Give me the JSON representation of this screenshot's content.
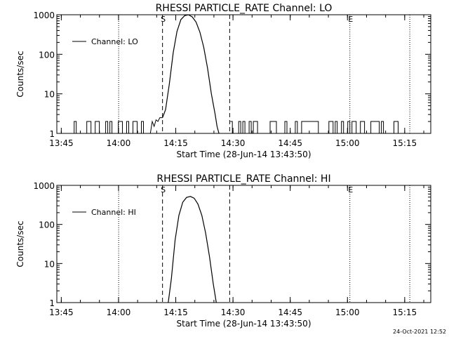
{
  "footer": {
    "timestamp": "24-Oct-2021 12:52"
  },
  "chart_data": [
    {
      "type": "line",
      "title": "RHESSI PARTICLE_RATE Channel: LO",
      "xlabel": "Start Time (28-Jun-14 13:43:50)",
      "ylabel": "Counts/sec",
      "x_unit": "minutes after 13:43:50",
      "xlim": [
        0,
        98
      ],
      "ylim": [
        1,
        1000
      ],
      "yscale": "log",
      "x_tick_labels": [
        "13:45",
        "14:00",
        "14:15",
        "14:30",
        "14:45",
        "15:00",
        "15:15"
      ],
      "x_tick_values": [
        1.17,
        16.17,
        31.17,
        46.17,
        61.17,
        76.17,
        91.17
      ],
      "y_tick_labels": [
        "1",
        "10",
        "100",
        "1000"
      ],
      "y_tick_values": [
        1,
        10,
        100,
        1000
      ],
      "legend": {
        "entries": [
          "Channel: LO"
        ],
        "placement": "top-left"
      },
      "markers": [
        {
          "label": "S",
          "x": 27.7,
          "style": "dashed"
        },
        {
          "label": "",
          "x": 45.3,
          "style": "dashed"
        },
        {
          "label": "",
          "x": 16.2,
          "style": "dotted"
        },
        {
          "label": "E",
          "x": 76.8,
          "style": "dotted"
        },
        {
          "label": "",
          "x": 92.5,
          "style": "dotted"
        }
      ],
      "series": [
        {
          "name": "Channel: LO",
          "x": [
            27.7,
            28.5,
            29.5,
            30.5,
            31.5,
            32.5,
            33.5,
            34.5,
            35.5,
            36.5,
            37.5,
            38.5,
            39.5,
            40.5,
            41.5,
            42.0,
            42.5
          ],
          "y": [
            2.5,
            4,
            18,
            110,
            380,
            750,
            950,
            1000,
            880,
            650,
            360,
            150,
            45,
            10,
            3,
            1.5,
            1
          ]
        }
      ],
      "noise": {
        "level": 2,
        "baseline": 1,
        "x_start": 4,
        "x_end": 93
      }
    },
    {
      "type": "line",
      "title": "RHESSI PARTICLE_RATE Channel: HI",
      "xlabel": "Start Time (28-Jun-14 13:43:50)",
      "ylabel": "Counts/sec",
      "x_unit": "minutes after 13:43:50",
      "xlim": [
        0,
        98
      ],
      "ylim": [
        1,
        1000
      ],
      "yscale": "log",
      "x_tick_labels": [
        "13:45",
        "14:00",
        "14:15",
        "14:30",
        "14:45",
        "15:00",
        "15:15"
      ],
      "x_tick_values": [
        1.17,
        16.17,
        31.17,
        46.17,
        61.17,
        76.17,
        91.17
      ],
      "y_tick_labels": [
        "1",
        "10",
        "100",
        "1000"
      ],
      "y_tick_values": [
        1,
        10,
        100,
        1000
      ],
      "legend": {
        "entries": [
          "Channel: HI"
        ],
        "placement": "top-left"
      },
      "markers": [
        {
          "label": "S",
          "x": 27.7,
          "style": "dashed"
        },
        {
          "label": "",
          "x": 45.3,
          "style": "dashed"
        },
        {
          "label": "",
          "x": 16.2,
          "style": "dotted"
        },
        {
          "label": "E",
          "x": 76.8,
          "style": "dotted"
        },
        {
          "label": "",
          "x": 92.5,
          "style": "dotted"
        }
      ],
      "series": [
        {
          "name": "Channel: HI",
          "x": [
            29.2,
            30.0,
            31.0,
            32.0,
            33.0,
            34.0,
            35.0,
            36.0,
            37.0,
            38.0,
            39.0,
            40.0,
            41.0,
            41.8
          ],
          "y": [
            1,
            4,
            40,
            170,
            370,
            490,
            520,
            470,
            330,
            170,
            60,
            15,
            3,
            1
          ]
        }
      ]
    }
  ]
}
